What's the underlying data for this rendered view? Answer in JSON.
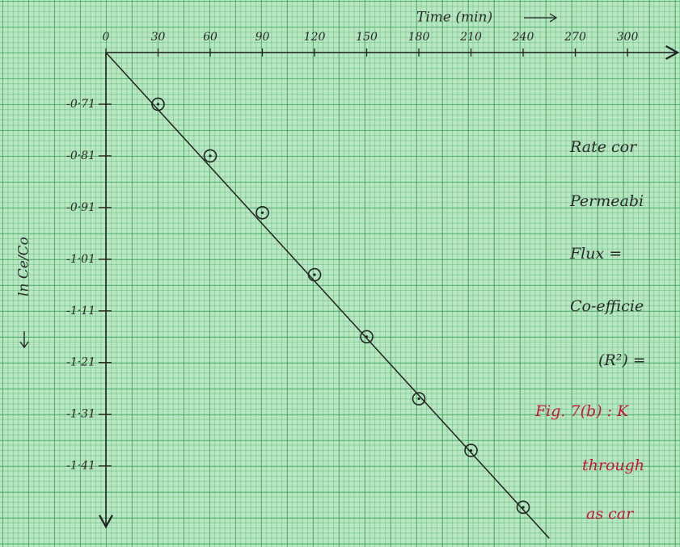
{
  "chart_data": {
    "type": "scatter",
    "x_label": "Time (min)",
    "y_label": "ln Ce/Co",
    "x": [
      30,
      60,
      90,
      120,
      150,
      180,
      210,
      240
    ],
    "values": [
      -0.71,
      -0.81,
      -0.92,
      -1.04,
      -1.16,
      -1.28,
      -1.38,
      -1.49
    ],
    "color": "#222222",
    "xlim": [
      0,
      330
    ],
    "ylim": [
      -1.52,
      -0.61
    ],
    "xticks": [
      0,
      30,
      60,
      90,
      120,
      150,
      180,
      210,
      240,
      270,
      300
    ],
    "yticks": [
      {
        "value": -0.71,
        "label": "-0·71"
      },
      {
        "value": -0.81,
        "label": "-0·81"
      },
      {
        "value": -0.91,
        "label": "-0·91"
      },
      {
        "value": -1.01,
        "label": "-1·01"
      },
      {
        "value": -1.11,
        "label": "-1·11"
      },
      {
        "value": -1.21,
        "label": "-1·21"
      },
      {
        "value": -1.31,
        "label": "-1·31"
      },
      {
        "value": -1.41,
        "label": "-1·41"
      }
    ],
    "trendline": {
      "x": [
        0,
        255
      ],
      "values": [
        -0.61,
        -1.55
      ]
    },
    "annotations": [
      {
        "text": "Rate cor",
        "color": "#2a2a2a"
      },
      {
        "text": "Permeabi",
        "color": "#2a2a2a"
      },
      {
        "text": "Flux =",
        "color": "#2a2a2a"
      },
      {
        "text": "Co-efficie",
        "color": "#2a2a2a"
      },
      {
        "text": "(R²) =",
        "color": "#2a2a2a"
      },
      {
        "text": "Fig. 7(b) :  K",
        "color": "#c8143c"
      },
      {
        "text": "through",
        "color": "#c8143c"
      },
      {
        "text": "as car",
        "color": "#c8143c"
      }
    ]
  }
}
